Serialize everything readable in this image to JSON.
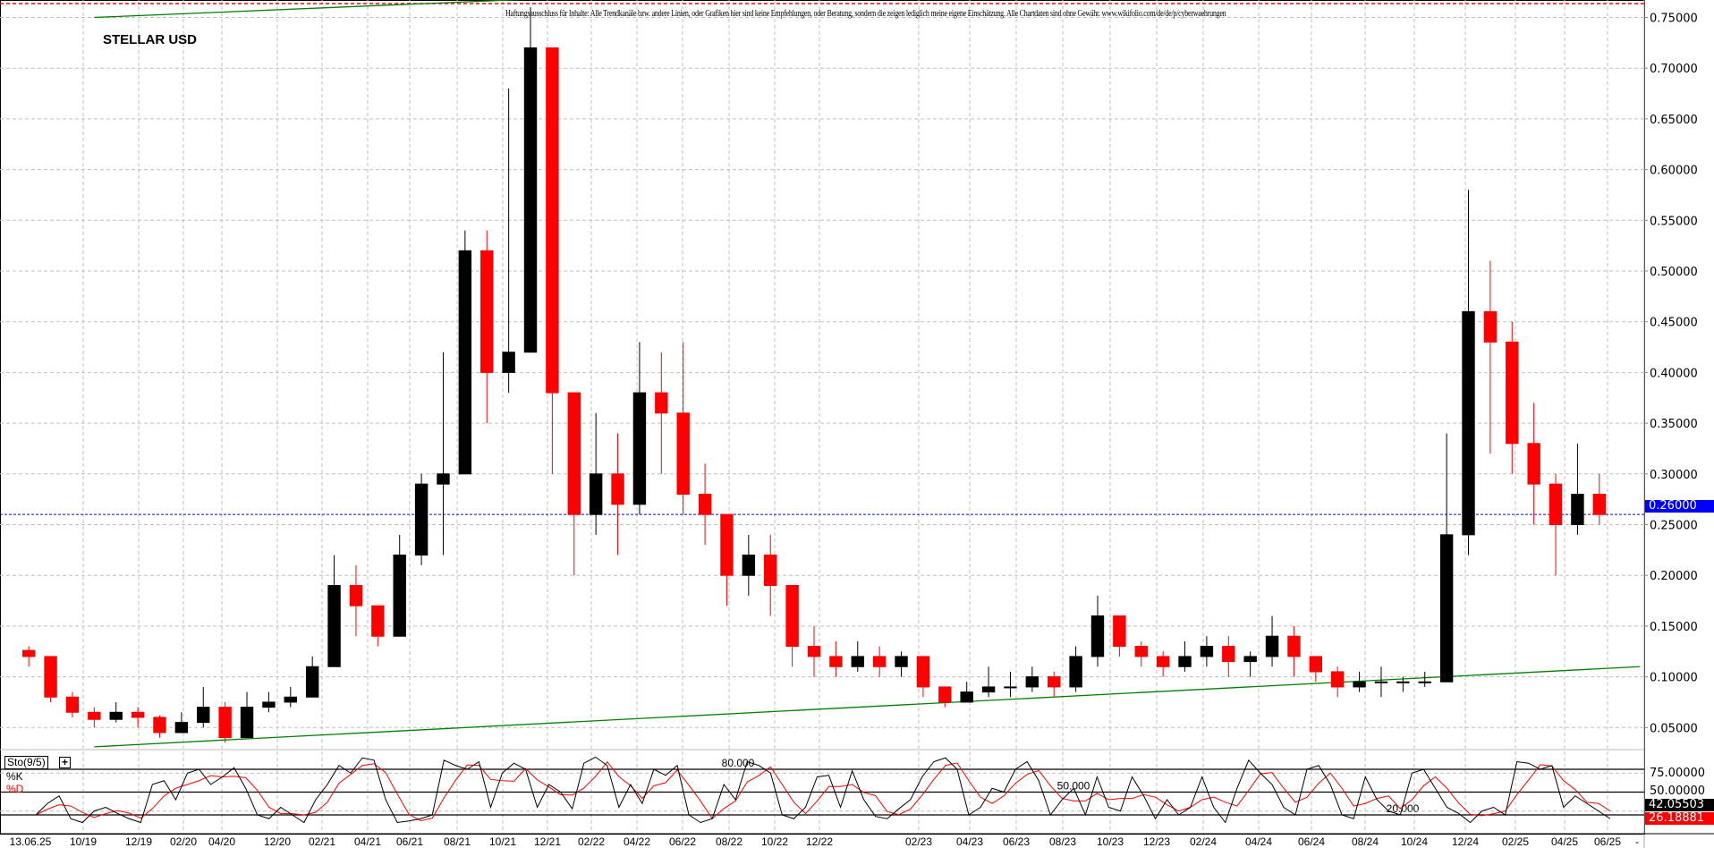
{
  "chart_data": [
    {
      "type": "candlestick",
      "title": "STELLAR USD",
      "disclaimer": "Haftungsausschluss für Inhalte: Alle Trendkanäle bzw. andere Linien, oder Grafiken hier sind keine Empfehlungen, oder Beratung, sondern die zeigen lediglich meine eigene Einschätzung. Alle Chartdaten sind ohne Gewähr. www.wikifolio.com/de/de/p/cyberwaehrungen",
      "x_tick_labels": [
        "13.06.25",
        "10/19",
        "12/19",
        "02/20",
        "04/20",
        "12/20",
        "02/21",
        "04/21",
        "06/21",
        "08/21",
        "10/21",
        "12/21",
        "02/22",
        "04/22",
        "06/22",
        "08/22",
        "10/22",
        "12/22",
        "02/23",
        "04/23",
        "06/23",
        "08/23",
        "10/23",
        "12/23",
        "02/24",
        "04/24",
        "06/24",
        "08/24",
        "10/24",
        "12/24",
        "02/25",
        "04/25",
        "06/25",
        "-"
      ],
      "y_tick_labels": [
        "0.75000",
        "0.70000",
        "0.65000",
        "0.60000",
        "0.55000",
        "0.50000",
        "0.45000",
        "0.40000",
        "0.35000",
        "0.30000",
        "0.25000",
        "0.20000",
        "0.15000",
        "0.10000",
        "0.05000"
      ],
      "ylim": [
        0.03,
        0.77
      ],
      "grid": true,
      "months": [
        "2019-06",
        "2019-07",
        "2019-08",
        "2019-09",
        "2019-10",
        "2019-11",
        "2019-12",
        "2020-01",
        "2020-02",
        "2020-03",
        "2020-04",
        "2020-05",
        "2020-06",
        "2020-07",
        "2020-08",
        "2020-09",
        "2020-10",
        "2020-11",
        "2020-12",
        "2021-01",
        "2021-02",
        "2021-03",
        "2021-04",
        "2021-05",
        "2021-06",
        "2021-07",
        "2021-08",
        "2021-09",
        "2021-10",
        "2021-11",
        "2021-12",
        "2022-01",
        "2022-02",
        "2022-03",
        "2022-04",
        "2022-05",
        "2022-06",
        "2022-07",
        "2022-08",
        "2022-09",
        "2022-10",
        "2022-11",
        "2022-12",
        "2023-01",
        "2023-02",
        "2023-03",
        "2023-04",
        "2023-05",
        "2023-06",
        "2023-07",
        "2023-08",
        "2023-09",
        "2023-10",
        "2023-11",
        "2023-12",
        "2024-01",
        "2024-02",
        "2024-03",
        "2024-04",
        "2024-05",
        "2024-06",
        "2024-07",
        "2024-08",
        "2024-09",
        "2024-10",
        "2024-11",
        "2024-12",
        "2025-01",
        "2025-02",
        "2025-03",
        "2025-04",
        "2025-05",
        "2025-06"
      ],
      "close": [
        0.12,
        0.08,
        0.065,
        0.058,
        0.065,
        0.06,
        0.045,
        0.055,
        0.07,
        0.04,
        0.07,
        0.075,
        0.08,
        0.11,
        0.19,
        0.17,
        0.14,
        0.22,
        0.29,
        0.3,
        0.52,
        0.4,
        0.42,
        0.72,
        0.38,
        0.26,
        0.3,
        0.27,
        0.38,
        0.36,
        0.28,
        0.26,
        0.2,
        0.22,
        0.19,
        0.13,
        0.12,
        0.11,
        0.12,
        0.11,
        0.12,
        0.09,
        0.075,
        0.085,
        0.09,
        0.09,
        0.1,
        0.09,
        0.12,
        0.16,
        0.13,
        0.12,
        0.11,
        0.12,
        0.13,
        0.115,
        0.12,
        0.14,
        0.12,
        0.105,
        0.09,
        0.095,
        0.095,
        0.095,
        0.095,
        0.24,
        0.46,
        0.43,
        0.33,
        0.29,
        0.25,
        0.28,
        0.26
      ],
      "high": [
        0.13,
        0.12,
        0.085,
        0.07,
        0.075,
        0.07,
        0.062,
        0.065,
        0.09,
        0.075,
        0.085,
        0.085,
        0.09,
        0.12,
        0.22,
        0.21,
        0.17,
        0.24,
        0.3,
        0.42,
        0.54,
        0.54,
        0.68,
        0.76,
        0.46,
        0.32,
        0.36,
        0.34,
        0.43,
        0.42,
        0.43,
        0.31,
        0.26,
        0.24,
        0.24,
        0.19,
        0.15,
        0.135,
        0.135,
        0.13,
        0.125,
        0.12,
        0.09,
        0.095,
        0.11,
        0.105,
        0.11,
        0.105,
        0.13,
        0.18,
        0.16,
        0.135,
        0.125,
        0.135,
        0.14,
        0.14,
        0.125,
        0.16,
        0.15,
        0.12,
        0.11,
        0.105,
        0.11,
        0.1,
        0.105,
        0.34,
        0.58,
        0.51,
        0.45,
        0.37,
        0.3,
        0.33,
        0.3
      ],
      "low": [
        0.11,
        0.075,
        0.06,
        0.05,
        0.055,
        0.05,
        0.04,
        0.045,
        0.05,
        0.035,
        0.04,
        0.065,
        0.07,
        0.08,
        0.11,
        0.14,
        0.13,
        0.15,
        0.21,
        0.22,
        0.3,
        0.35,
        0.38,
        0.42,
        0.3,
        0.2,
        0.24,
        0.22,
        0.26,
        0.3,
        0.26,
        0.23,
        0.17,
        0.18,
        0.16,
        0.11,
        0.1,
        0.1,
        0.105,
        0.1,
        0.1,
        0.08,
        0.07,
        0.075,
        0.08,
        0.08,
        0.085,
        0.08,
        0.085,
        0.11,
        0.12,
        0.11,
        0.1,
        0.105,
        0.11,
        0.1,
        0.1,
        0.11,
        0.1,
        0.095,
        0.08,
        0.085,
        0.08,
        0.085,
        0.09,
        0.12,
        0.22,
        0.32,
        0.3,
        0.25,
        0.2,
        0.24,
        0.25
      ],
      "current_price_label": "0.26000",
      "current_price": 0.26,
      "trendlines": [
        {
          "from": [
            "2019-09",
            0.75
          ],
          "to": [
            "2021-05",
            0.768
          ],
          "color": "#008000"
        },
        {
          "from": [
            "2019-09",
            0.031
          ],
          "to": [
            "2025-07",
            0.11
          ],
          "color": "#008000"
        }
      ],
      "colors": {
        "up": "#000000",
        "down": "#ff0000",
        "price_line": "#0000ff",
        "resistance": "#ff0000"
      }
    },
    {
      "type": "line",
      "indicator_label": "Sto(9/5)",
      "plus_label": "+",
      "series": [
        {
          "name": "%K",
          "color": "#000000"
        },
        {
          "name": "%D",
          "color": "#ff0000"
        }
      ],
      "k": [
        20,
        35,
        45,
        15,
        10,
        25,
        30,
        22,
        15,
        10,
        60,
        65,
        40,
        75,
        80,
        60,
        70,
        82,
        55,
        20,
        15,
        30,
        20,
        10,
        40,
        60,
        85,
        75,
        95,
        92,
        40,
        10,
        12,
        15,
        20,
        92,
        85,
        80,
        90,
        30,
        75,
        88,
        80,
        30,
        60,
        50,
        28,
        88,
        96,
        85,
        30,
        60,
        35,
        80,
        72,
        85,
        20,
        10,
        15,
        60,
        40,
        90,
        85,
        75,
        20,
        15,
        30,
        70,
        72,
        30,
        78,
        40,
        18,
        15,
        28,
        40,
        70,
        90,
        95,
        80,
        20,
        30,
        55,
        50,
        80,
        90,
        65,
        20,
        40,
        55,
        20,
        70,
        30,
        25,
        70,
        45,
        15,
        40,
        20,
        30,
        70,
        30,
        10,
        55,
        92,
        75,
        60,
        30,
        20,
        80,
        85,
        60,
        20,
        15,
        70,
        40,
        25,
        20,
        75,
        80,
        55,
        30,
        22,
        10,
        25,
        30,
        20,
        90,
        88,
        80,
        85,
        30,
        45,
        35,
        25,
        15
      ],
      "d_label": "%D",
      "k_label": "%K",
      "levels": [
        {
          "label": "80.000",
          "value": 80
        },
        {
          "label": "50.000",
          "value": 50
        },
        {
          "label": "20.000",
          "value": 20
        }
      ],
      "y_tick_labels": [
        "75.00000",
        "50.00000"
      ],
      "k_value_label": "42.05503",
      "d_value_label": "26.18881"
    }
  ]
}
